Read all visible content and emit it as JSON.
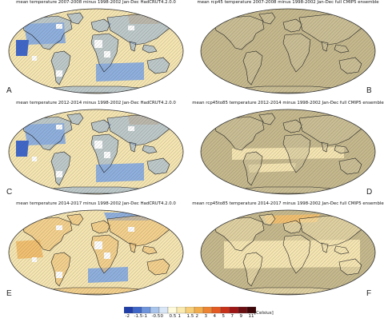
{
  "panels": [
    {
      "id": "A",
      "title": "mean temperature 2007-2008 minus 1998-2002 Jan-Dec HadCRUT4.2.0.0",
      "label": "A",
      "style": "obs-mixed"
    },
    {
      "id": "B",
      "title": "mean rcp45 temperature 2007-2008 minus 1998-2002 Jan-Dec full CMIP5 ensemble",
      "label": "B",
      "style": "model-neutral"
    },
    {
      "id": "C",
      "title": "mean temperature 2012-2014 minus 1998-2002 Jan-Dec HadCRUT4.2.0.0",
      "label": "C",
      "style": "obs-mixed"
    },
    {
      "id": "D",
      "title": "mean rcp45to85 temperature 2012-2014 minus 1998-2002 Jan-Dec full CMIP5 ensemble",
      "label": "D",
      "style": "model-warm"
    },
    {
      "id": "E",
      "title": "mean temperature 2014-2017 minus 1998-2002 Jan-Dec HadCRUT4.2.0.0",
      "label": "E",
      "style": "obs-warm"
    },
    {
      "id": "F",
      "title": "mean rcp45to85 temperature 2014-2017 minus 1998-2002 Jan-Dec full CMIP5 ensemble",
      "label": "F",
      "style": "model-warmer"
    }
  ],
  "colorbar": {
    "labels": [
      "-2",
      "-1.5",
      "-1",
      "-0.5",
      "0",
      "0.5",
      "1",
      "1.5",
      "2",
      "3",
      "4",
      "5",
      "7",
      "9",
      "11"
    ],
    "colors": [
      "#1f3ea8",
      "#3f66c9",
      "#6f95dd",
      "#a9c5ec",
      "#d8e6f6",
      "#fffbdc",
      "#fbeab0",
      "#f7cf7a",
      "#f2ad4d",
      "#ec8433",
      "#e35b22",
      "#c8311a",
      "#9e1616",
      "#6b0f13",
      "#3d0608"
    ],
    "unit": "[Celsius]"
  },
  "palette": {
    "ocean_neutral": "#c6b98d",
    "land_neutral": "#cdc29a",
    "cool": "#8fb0de",
    "cool_dark": "#3f66c9",
    "warm_light": "#f6e6b2",
    "warm": "#f2c070",
    "hatch": "#4a4a4a",
    "missing": "#ffffff"
  }
}
